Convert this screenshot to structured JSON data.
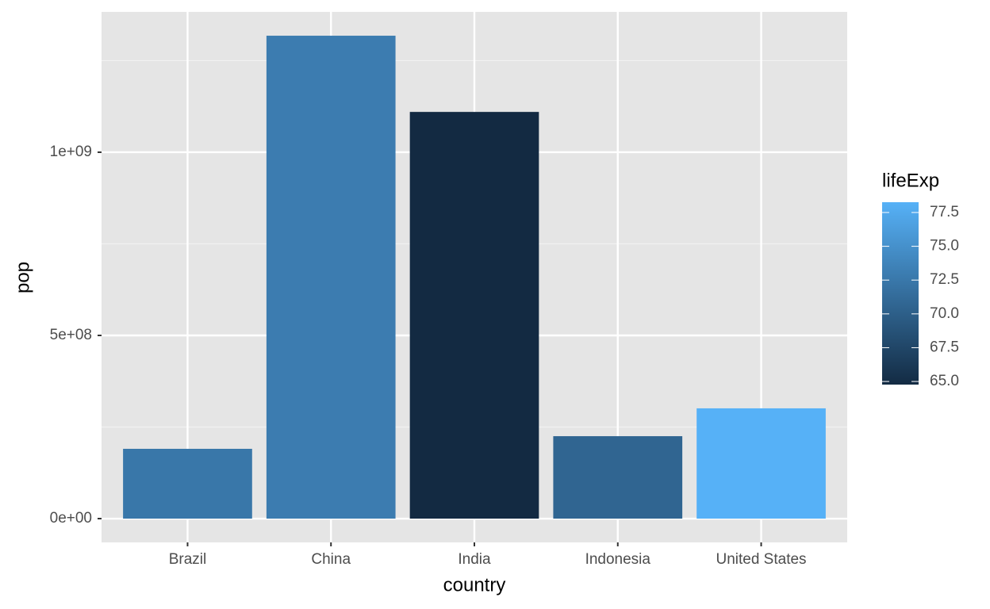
{
  "chart_data": {
    "type": "bar",
    "x_label": "country",
    "y_label": "pop",
    "categories": [
      "Brazil",
      "China",
      "India",
      "Indonesia",
      "United States"
    ],
    "values": [
      190500000,
      1318000000,
      1110000000,
      225000000,
      301000000
    ],
    "ylim": [
      -64900000,
      1383000000
    ],
    "yticks": [
      {
        "value": 0,
        "label": "0e+00"
      },
      {
        "value": 500000000,
        "label": "5e+08"
      },
      {
        "value": 1000000000,
        "label": "1e+09"
      }
    ],
    "minor_yticks": [
      250000000,
      750000000,
      1250000000
    ],
    "grid": true,
    "color_legend": {
      "title": "lifeExp",
      "low_color": "#132B43",
      "high_color": "#56B1F7",
      "colorlim": [
        64.77,
        78.26
      ],
      "ticks": [
        {
          "value": 65,
          "label": "65.0"
        },
        {
          "value": 67.5,
          "label": "67.5"
        },
        {
          "value": 70,
          "label": "70.0"
        },
        {
          "value": 72.5,
          "label": "72.5"
        },
        {
          "value": 75,
          "label": "75.0"
        },
        {
          "value": 77.5,
          "label": "77.5"
        }
      ],
      "values": [
        72.39,
        72.96,
        64.7,
        70.65,
        78.24
      ]
    }
  }
}
